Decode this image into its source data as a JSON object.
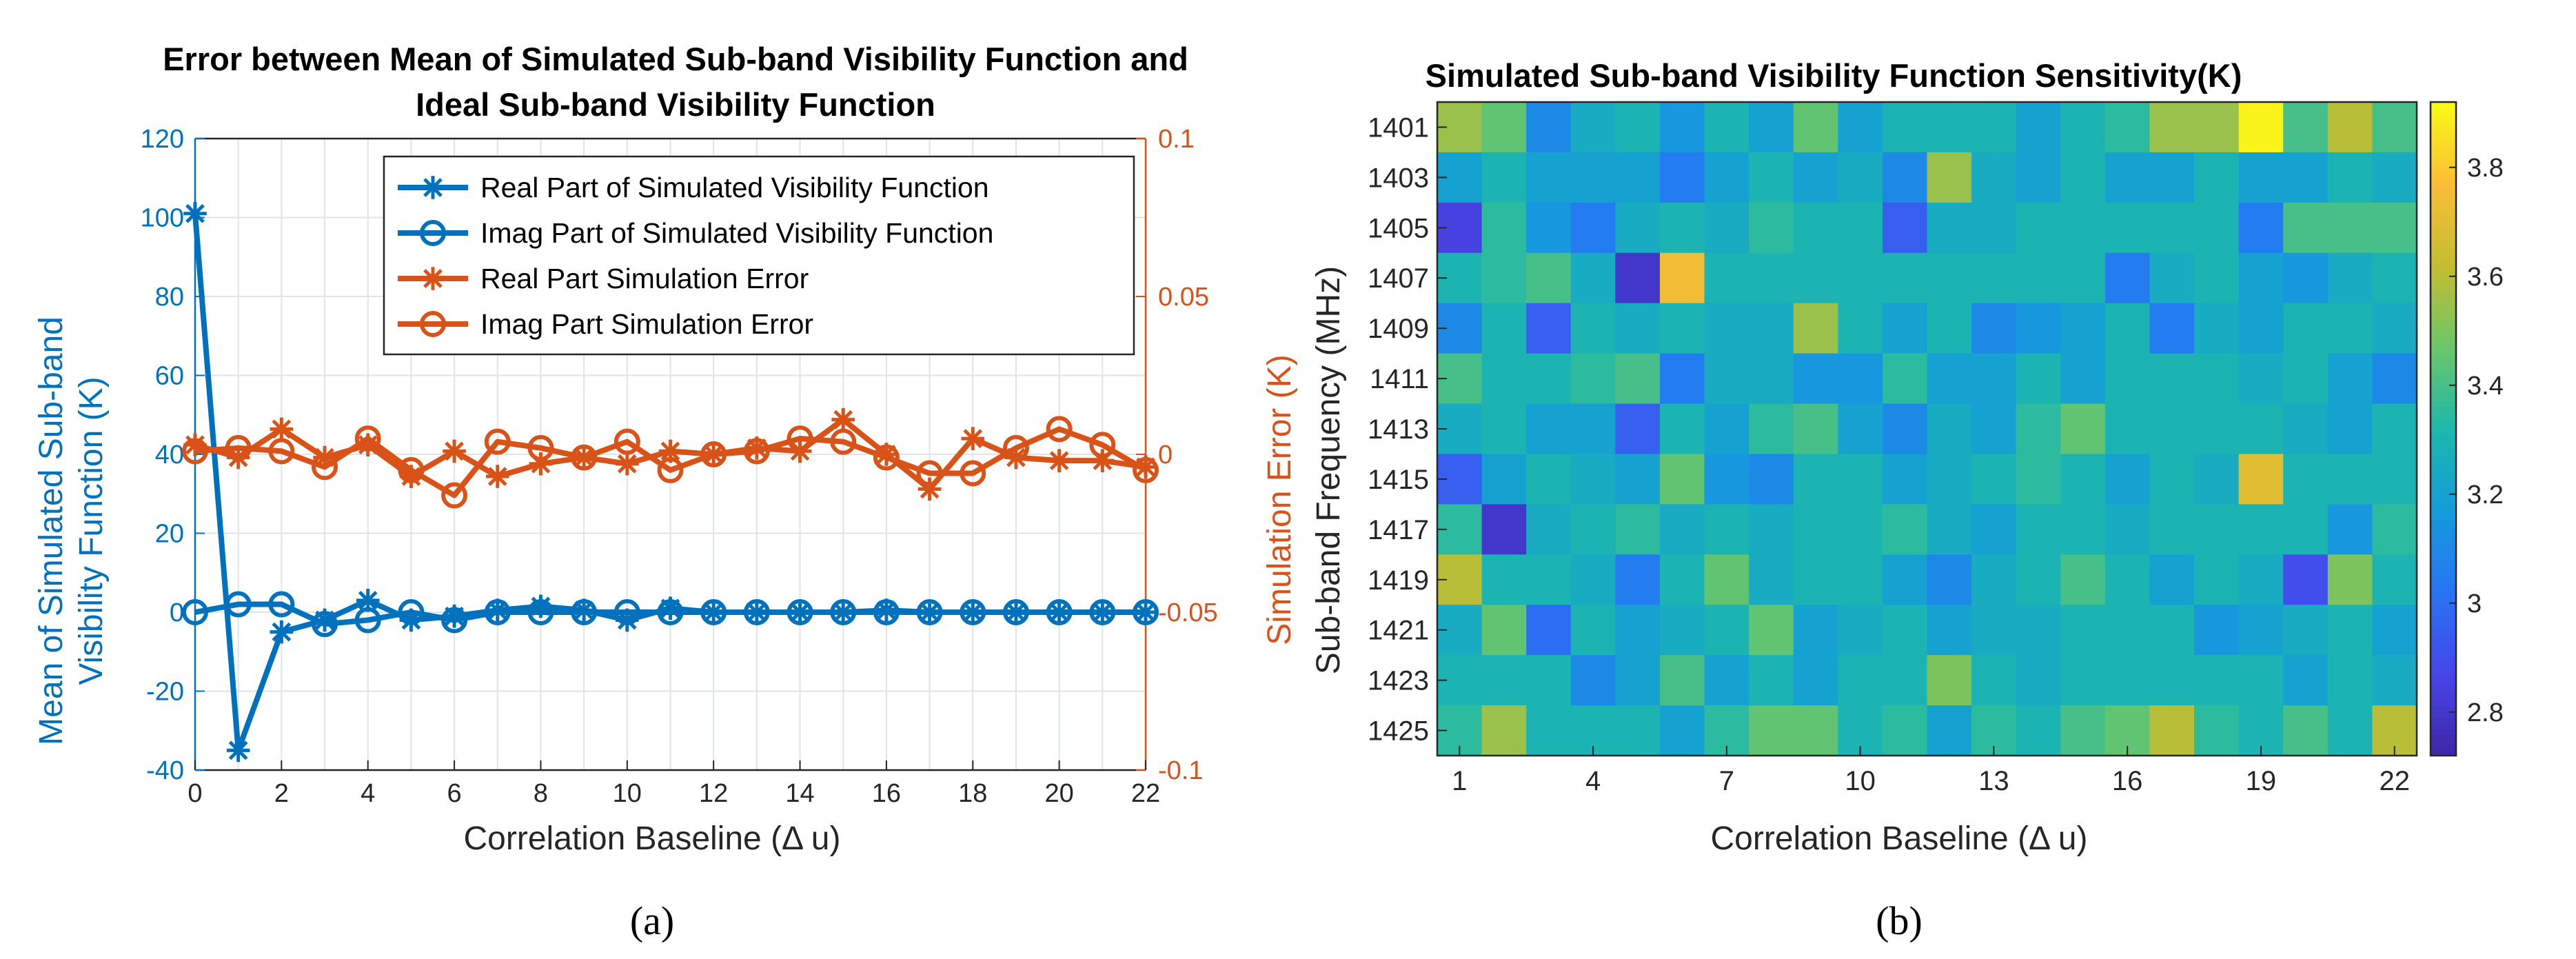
{
  "chart_data": [
    {
      "type": "line",
      "panel_label": "(a)",
      "title_lines": [
        "Error between Mean of Simulated Sub-band Visibility Function and",
        "Ideal Sub-band Visibility Function"
      ],
      "xlabel": "Correlation Baseline (Δ u)",
      "ylabel_left_lines": [
        "Mean of Simulated Sub-band",
        "Visibility Function (K)"
      ],
      "ylabel_right": "Simulation Error (K)",
      "xlim": [
        0,
        22
      ],
      "ylim_left": [
        -40,
        120
      ],
      "ylim_right": [
        -0.1,
        0.1
      ],
      "xticks": [
        "0",
        "2",
        "4",
        "6",
        "8",
        "10",
        "12",
        "14",
        "16",
        "18",
        "20",
        "22"
      ],
      "yticks_left": [
        "-40",
        "-20",
        "0",
        "20",
        "40",
        "60",
        "80",
        "100",
        "120"
      ],
      "yticks_right": [
        "-0.1",
        "-0.05",
        "0",
        "0.05",
        "0.1"
      ],
      "grid": true,
      "legend_position": "top-right",
      "colors": {
        "left_axis": "#0072BD",
        "right_axis": "#D95319"
      },
      "x": [
        0,
        1,
        2,
        3,
        4,
        5,
        6,
        7,
        8,
        9,
        10,
        11,
        12,
        13,
        14,
        15,
        16,
        17,
        18,
        19,
        20,
        21,
        22
      ],
      "series": [
        {
          "name": "Real Part of Simulated Visibility Function",
          "axis": "left",
          "marker": "asterisk",
          "color": "#0072BD",
          "values": [
            101,
            -35,
            -5,
            -2,
            3,
            -2,
            -1,
            0.5,
            1.5,
            0.5,
            -2,
            1,
            0,
            0,
            0,
            0,
            0.5,
            0,
            0,
            0,
            0,
            0,
            0
          ]
        },
        {
          "name": "Imag Part of Simulated Visibility Function",
          "axis": "left",
          "marker": "circle",
          "color": "#0072BD",
          "values": [
            0,
            2,
            2,
            -3,
            -2,
            0,
            -2,
            0,
            0,
            0,
            0,
            0,
            0,
            0,
            0,
            0,
            0,
            0,
            0,
            0,
            0,
            0,
            0
          ]
        },
        {
          "name": "Real Part Simulation Error",
          "axis": "right",
          "marker": "asterisk",
          "color": "#D95319",
          "values": [
            0.003,
            -0.001,
            0.008,
            -0.001,
            0.003,
            -0.007,
            0.001,
            -0.007,
            -0.003,
            -0.001,
            -0.003,
            0.001,
            0,
            0.002,
            0.001,
            0.011,
            0,
            -0.011,
            0.005,
            -0.001,
            -0.002,
            -0.002,
            -0.004
          ]
        },
        {
          "name": "Imag Part Simulation Error",
          "axis": "right",
          "marker": "circle",
          "color": "#D95319",
          "values": [
            0.001,
            0.002,
            0.001,
            -0.004,
            0.005,
            -0.005,
            -0.013,
            0.004,
            0.002,
            -0.001,
            0.004,
            -0.005,
            0,
            0.001,
            0.005,
            0.004,
            -0.001,
            -0.006,
            -0.006,
            0.002,
            0.008,
            0.003,
            -0.005
          ]
        }
      ]
    },
    {
      "type": "heatmap",
      "panel_label": "(b)",
      "title": "Simulated Sub-band Visibility Function Sensitivity(K)",
      "xlabel": "Correlation Baseline (Δ u)",
      "ylabel": "Sub-band Frequency (MHz)",
      "xticks": [
        "1",
        "4",
        "7",
        "10",
        "13",
        "16",
        "19",
        "22"
      ],
      "yticks": [
        "1401",
        "1403",
        "1405",
        "1407",
        "1409",
        "1411",
        "1413",
        "1415",
        "1417",
        "1419",
        "1421",
        "1423",
        "1425"
      ],
      "colorbar_ticks": [
        "2.8",
        "3",
        "3.2",
        "3.4",
        "3.6",
        "3.8"
      ],
      "clim": [
        2.72,
        3.92
      ],
      "colormap": "parula",
      "values": [
        [
          3.55,
          3.45,
          3.1,
          3.25,
          3.3,
          3.15,
          3.3,
          3.2,
          3.45,
          3.2,
          3.3,
          3.3,
          3.3,
          3.2,
          3.3,
          3.35,
          3.55,
          3.55,
          3.9,
          3.4,
          3.6,
          3.4
        ],
        [
          3.2,
          3.3,
          3.2,
          3.2,
          3.2,
          3.05,
          3.2,
          3.3,
          3.2,
          3.25,
          3.1,
          3.55,
          3.25,
          3.2,
          3.3,
          3.2,
          3.2,
          3.3,
          3.2,
          3.2,
          3.3,
          3.25
        ],
        [
          2.85,
          3.35,
          3.15,
          3.05,
          3.25,
          3.3,
          3.25,
          3.35,
          3.3,
          3.3,
          2.95,
          3.25,
          3.25,
          3.3,
          3.3,
          3.3,
          3.3,
          3.3,
          3.05,
          3.4,
          3.4,
          3.4
        ],
        [
          3.3,
          3.35,
          3.4,
          3.25,
          2.8,
          3.75,
          3.3,
          3.3,
          3.3,
          3.3,
          3.3,
          3.3,
          3.3,
          3.3,
          3.3,
          3.05,
          3.25,
          3.3,
          3.2,
          3.15,
          3.25,
          3.3
        ],
        [
          3.1,
          3.3,
          2.95,
          3.3,
          3.25,
          3.3,
          3.25,
          3.25,
          3.55,
          3.3,
          3.2,
          3.3,
          3.1,
          3.15,
          3.2,
          3.3,
          3.05,
          3.25,
          3.2,
          3.3,
          3.3,
          3.25
        ],
        [
          3.4,
          3.3,
          3.3,
          3.35,
          3.4,
          3.05,
          3.25,
          3.25,
          3.15,
          3.15,
          3.35,
          3.2,
          3.2,
          3.3,
          3.2,
          3.3,
          3.3,
          3.3,
          3.25,
          3.3,
          3.2,
          3.1
        ],
        [
          3.25,
          3.3,
          3.2,
          3.2,
          2.95,
          3.3,
          3.2,
          3.35,
          3.4,
          3.2,
          3.1,
          3.25,
          3.2,
          3.35,
          3.45,
          3.3,
          3.3,
          3.3,
          3.3,
          3.25,
          3.2,
          3.3
        ],
        [
          2.95,
          3.2,
          3.3,
          3.25,
          3.2,
          3.45,
          3.15,
          3.1,
          3.3,
          3.3,
          3.2,
          3.25,
          3.3,
          3.35,
          3.3,
          3.2,
          3.3,
          3.25,
          3.7,
          3.3,
          3.3,
          3.3
        ],
        [
          3.35,
          2.8,
          3.25,
          3.3,
          3.35,
          3.25,
          3.3,
          3.25,
          3.3,
          3.3,
          3.35,
          3.25,
          3.2,
          3.3,
          3.3,
          3.25,
          3.3,
          3.3,
          3.3,
          3.3,
          3.15,
          3.35
        ],
        [
          3.6,
          3.3,
          3.3,
          3.25,
          3.05,
          3.3,
          3.45,
          3.25,
          3.3,
          3.3,
          3.2,
          3.1,
          3.25,
          3.3,
          3.4,
          3.3,
          3.2,
          3.3,
          3.25,
          2.9,
          3.5,
          3.3
        ],
        [
          3.25,
          3.45,
          3.0,
          3.3,
          3.2,
          3.25,
          3.3,
          3.45,
          3.2,
          3.25,
          3.3,
          3.2,
          3.25,
          3.25,
          3.3,
          3.3,
          3.3,
          3.15,
          3.2,
          3.25,
          3.3,
          3.2
        ],
        [
          3.3,
          3.3,
          3.3,
          3.1,
          3.2,
          3.4,
          3.2,
          3.3,
          3.2,
          3.3,
          3.3,
          3.5,
          3.3,
          3.25,
          3.3,
          3.3,
          3.3,
          3.3,
          3.3,
          3.2,
          3.3,
          3.25
        ],
        [
          3.35,
          3.55,
          3.3,
          3.3,
          3.3,
          3.2,
          3.35,
          3.45,
          3.45,
          3.3,
          3.35,
          3.2,
          3.35,
          3.3,
          3.4,
          3.45,
          3.6,
          3.35,
          3.3,
          3.4,
          3.3,
          3.6
        ]
      ]
    }
  ]
}
